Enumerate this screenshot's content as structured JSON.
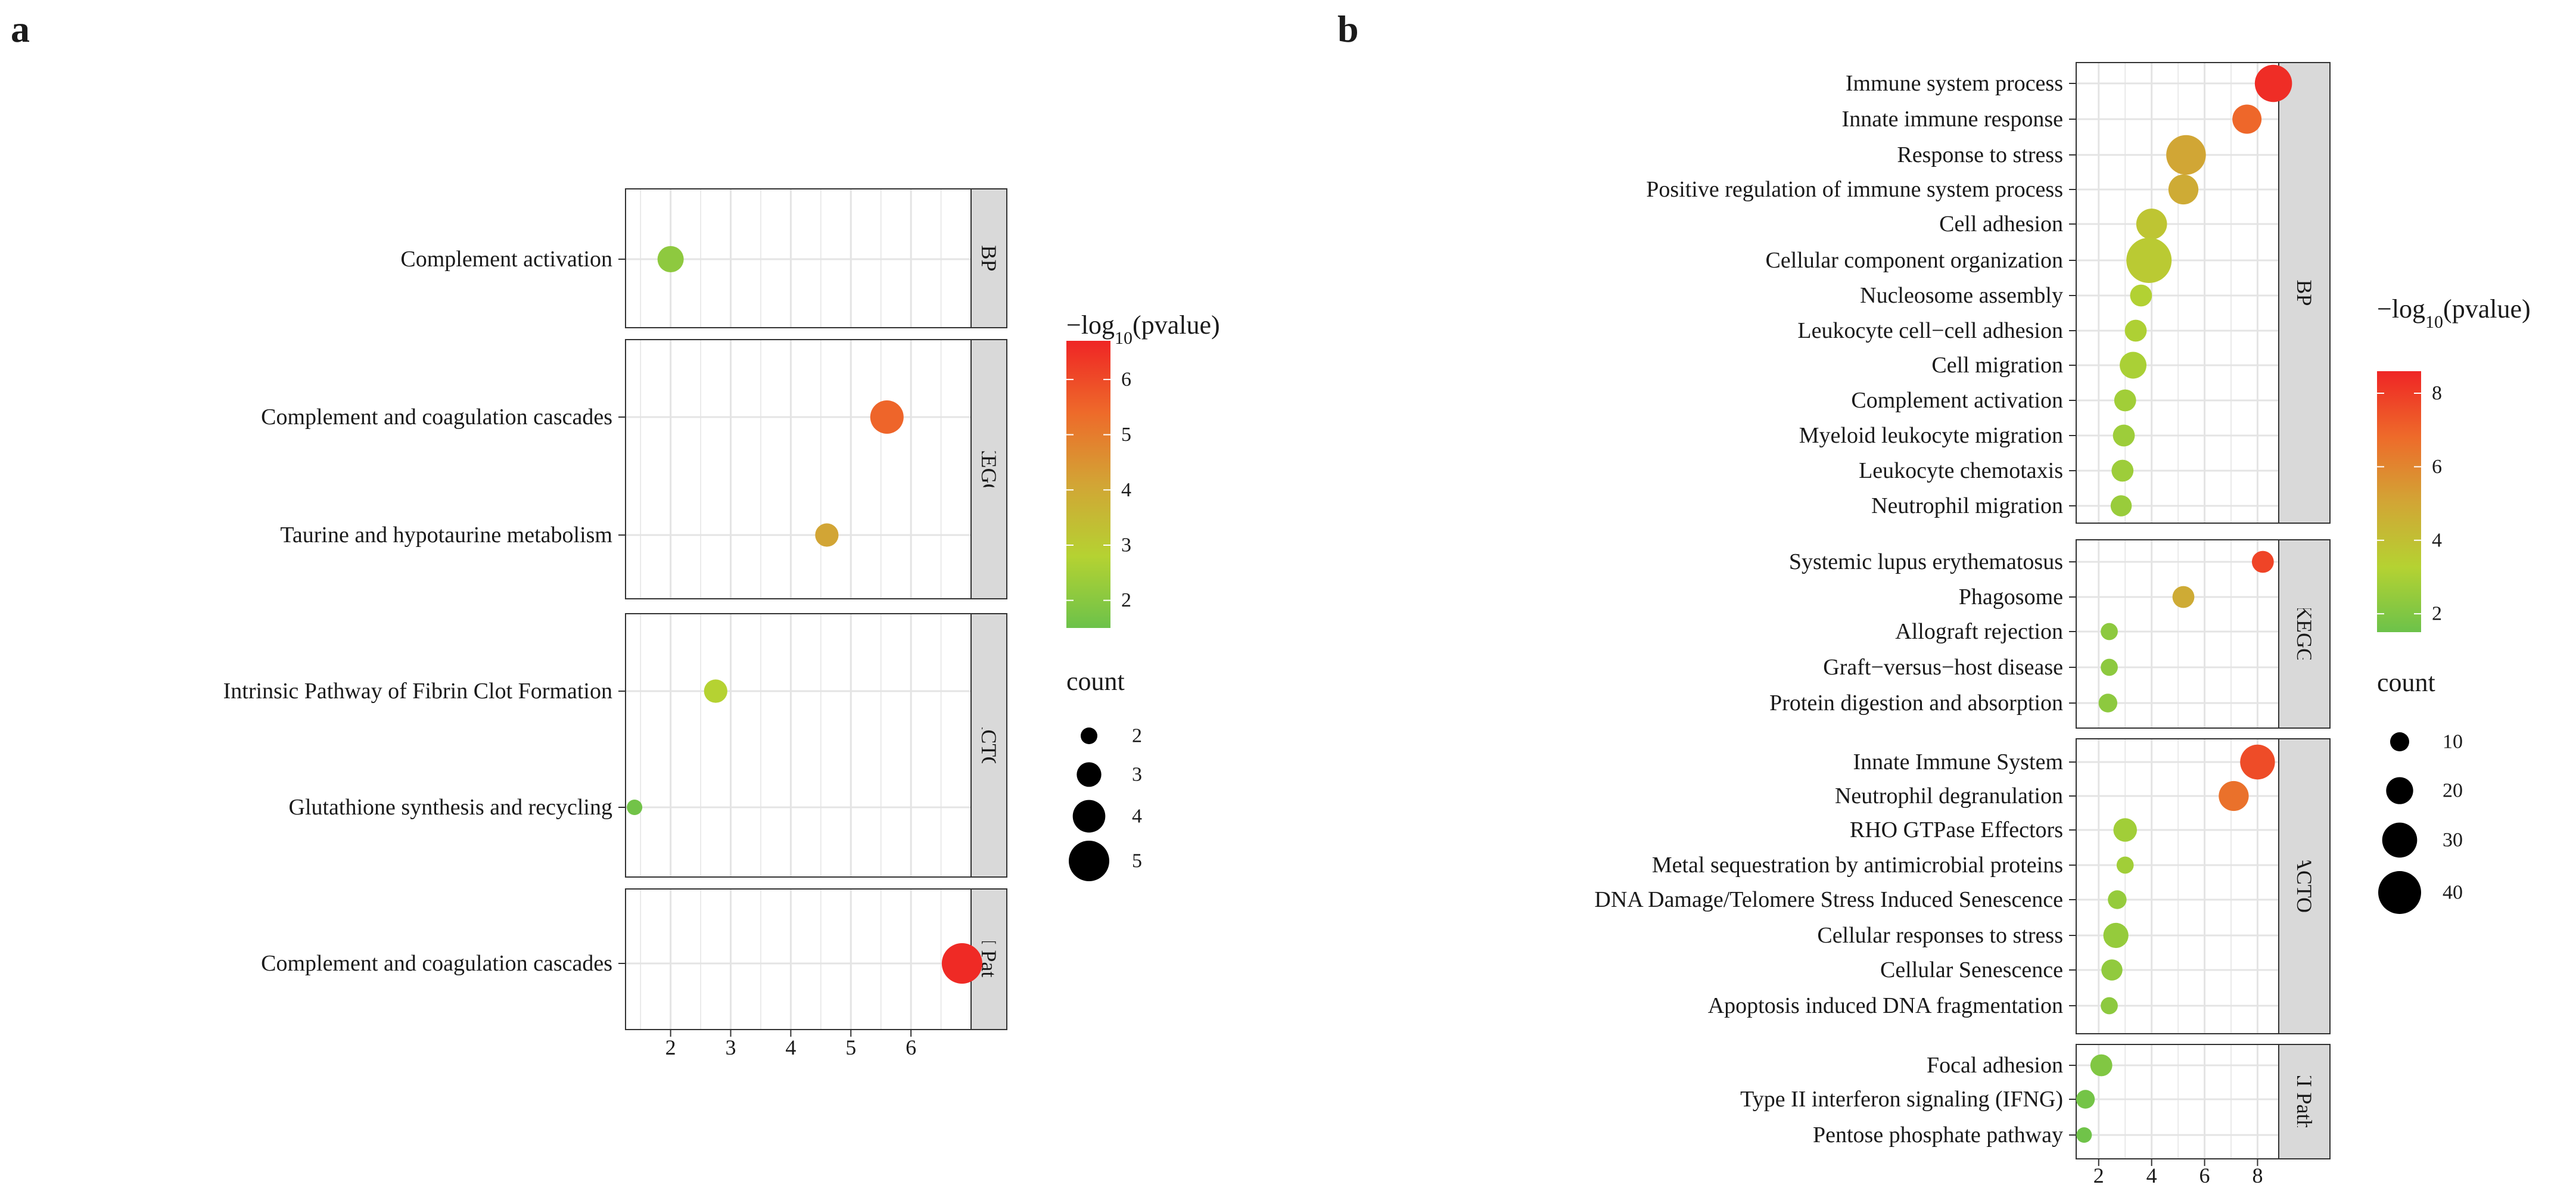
{
  "panels": [
    {
      "letter": "a",
      "chart_data": {
        "type": "scatter",
        "title": "",
        "xlabel": "",
        "ylabel": "",
        "xlim": [
          1.25,
          7.0
        ],
        "xticks": [
          2,
          3,
          4,
          5,
          6
        ],
        "size_by": "count",
        "color_by": "-log10(pvalue)",
        "facets": [
          {
            "name": "BP",
            "points": [
              {
                "term": "Complement activation",
                "x": 2.0,
                "count": 3,
                "neglog10p": 2.1
              }
            ]
          },
          {
            "name": "KEGG",
            "points": [
              {
                "term": "Complement and coagulation cascades",
                "x": 5.6,
                "count": 4,
                "neglog10p": 5.5
              },
              {
                "term": "Taurine and hypotaurine metabolism",
                "x": 4.6,
                "count": 2.6,
                "neglog10p": 4.1
              }
            ]
          },
          {
            "name": "REACTOME",
            "points": [
              {
                "term": "Intrinsic Pathway of Fibrin Clot Formation",
                "x": 2.75,
                "count": 2.6,
                "neglog10p": 2.8
              },
              {
                "term": "Glutathione synthesis and recycling",
                "x": 1.4,
                "count": 1.5,
                "neglog10p": 1.6
              }
            ]
          },
          {
            "name": "WIKI Pathway",
            "points": [
              {
                "term": "Complement and coagulation cascades",
                "x": 6.85,
                "count": 5,
                "neglog10p": 6.6
              }
            ]
          }
        ],
        "color_legend": {
          "title_prefix": "−log",
          "title_sub": "10",
          "title_suffix": "(pvalue)",
          "min": 1.5,
          "max": 6.7,
          "ticks": [
            2,
            3,
            4,
            5,
            6
          ]
        },
        "size_legend": {
          "title": "count",
          "values": [
            2,
            3,
            4,
            5
          ]
        }
      }
    },
    {
      "letter": "b",
      "chart_data": {
        "type": "scatter",
        "title": "",
        "xlabel": "",
        "ylabel": "",
        "xlim": [
          1.15,
          8.8
        ],
        "xticks": [
          2,
          4,
          6,
          8
        ],
        "size_by": "count",
        "color_by": "-log10(pvalue)",
        "facets": [
          {
            "name": "BP",
            "points": [
              {
                "term": "Immune system process",
                "x": 8.6,
                "count": 35,
                "neglog10p": 8.4
              },
              {
                "term": "Innate immune response",
                "x": 7.6,
                "count": 25,
                "neglog10p": 6.9
              },
              {
                "term": "Response to stress",
                "x": 5.3,
                "count": 38,
                "neglog10p": 5.0
              },
              {
                "term": "Positive regulation of immune system process",
                "x": 5.2,
                "count": 26,
                "neglog10p": 4.8
              },
              {
                "term": "Cell adhesion",
                "x": 4.0,
                "count": 27,
                "neglog10p": 3.8
              },
              {
                "term": "Cellular component organization",
                "x": 3.9,
                "count": 45,
                "neglog10p": 3.6
              },
              {
                "term": "Nucleosome assembly",
                "x": 3.6,
                "count": 16,
                "neglog10p": 3.2
              },
              {
                "term": "Leukocyte cell−cell adhesion",
                "x": 3.4,
                "count": 16,
                "neglog10p": 3.1
              },
              {
                "term": "Cell migration",
                "x": 3.3,
                "count": 22,
                "neglog10p": 3.0
              },
              {
                "term": "Complement activation",
                "x": 3.0,
                "count": 16,
                "neglog10p": 2.8
              },
              {
                "term": "Myeloid leukocyte migration",
                "x": 2.95,
                "count": 16,
                "neglog10p": 2.7
              },
              {
                "term": "Leukocyte chemotaxis",
                "x": 2.9,
                "count": 16,
                "neglog10p": 2.7
              },
              {
                "term": "Neutrophil migration",
                "x": 2.85,
                "count": 15,
                "neglog10p": 2.6
              }
            ]
          },
          {
            "name": "KEGG",
            "points": [
              {
                "term": "Systemic lupus erythematosus",
                "x": 8.2,
                "count": 16,
                "neglog10p": 7.8
              },
              {
                "term": "Phagosome",
                "x": 5.2,
                "count": 16,
                "neglog10p": 4.8
              },
              {
                "term": "Allograft rejection",
                "x": 2.4,
                "count": 10,
                "neglog10p": 2.3
              },
              {
                "term": "Graft−versus−host disease",
                "x": 2.4,
                "count": 10,
                "neglog10p": 2.3
              },
              {
                "term": "Protein digestion and absorption",
                "x": 2.35,
                "count": 12,
                "neglog10p": 2.3
              }
            ]
          },
          {
            "name": "REACTOME",
            "points": [
              {
                "term": "Innate Immune System",
                "x": 8.0,
                "count": 32,
                "neglog10p": 7.6
              },
              {
                "term": "Neutrophil degranulation",
                "x": 7.1,
                "count": 26,
                "neglog10p": 6.6
              },
              {
                "term": "RHO GTPase Effectors",
                "x": 3.0,
                "count": 18,
                "neglog10p": 2.8
              },
              {
                "term": "Metal sequestration by antimicrobial proteins",
                "x": 3.0,
                "count": 10,
                "neglog10p": 2.8
              },
              {
                "term": "DNA Damage/Telomere Stress Induced Senescence",
                "x": 2.7,
                "count": 12,
                "neglog10p": 2.5
              },
              {
                "term": "Cellular responses to stress",
                "x": 2.65,
                "count": 20,
                "neglog10p": 2.5
              },
              {
                "term": "Cellular Senescence",
                "x": 2.5,
                "count": 15,
                "neglog10p": 2.4
              },
              {
                "term": "Apoptosis induced DNA fragmentation",
                "x": 2.4,
                "count": 10,
                "neglog10p": 2.3
              }
            ]
          },
          {
            "name": "WIKI Pathway",
            "points": [
              {
                "term": "Focal adhesion",
                "x": 2.1,
                "count": 16,
                "neglog10p": 2.0
              },
              {
                "term": "Type II interferon signaling (IFNG)",
                "x": 1.5,
                "count": 12,
                "neglog10p": 1.7
              },
              {
                "term": "Pentose phosphate pathway",
                "x": 1.45,
                "count": 8,
                "neglog10p": 1.6
              }
            ]
          }
        ],
        "color_legend": {
          "title_prefix": "−log",
          "title_sub": "10",
          "title_suffix": "(pvalue)",
          "min": 1.5,
          "max": 8.6,
          "ticks": [
            2,
            4,
            6,
            8
          ]
        },
        "size_legend": {
          "title": "count",
          "values": [
            10,
            20,
            30,
            40
          ]
        }
      }
    }
  ],
  "colors": {
    "gradient": [
      "#6cc24a",
      "#b5d232",
      "#d2a535",
      "#ee6a2a",
      "#ef2525"
    ],
    "panel_bg": "#ffffff",
    "grid": "#e4e4e4",
    "border": "#333333",
    "strip_bg": "#d9d9d9",
    "legend_dot": "#000000"
  }
}
